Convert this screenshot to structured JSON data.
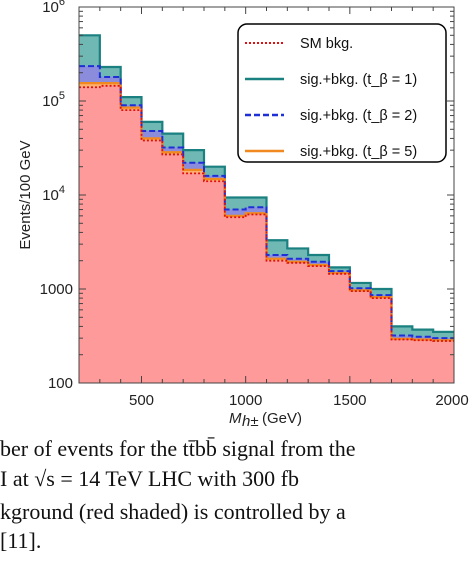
{
  "chart_data": {
    "type": "step-area",
    "xlabel": "M_h± (GeV)",
    "ylabel": "Events/100 GeV",
    "xlim": [
      200,
      2000
    ],
    "ylim": [
      100,
      1000000
    ],
    "y_scale": "log",
    "x_ticks": [
      "500",
      "1000",
      "1500",
      "2000"
    ],
    "y_ticks": [
      "100",
      "1000",
      "10^4",
      "10^5",
      "10^6"
    ],
    "bin_edges": [
      200,
      300,
      400,
      500,
      600,
      700,
      800,
      900,
      1000,
      1100,
      1200,
      1300,
      1400,
      1500,
      1600,
      1700,
      1800,
      1900,
      2000
    ],
    "series": [
      {
        "name": "SM bkg.",
        "values": [
          140000,
          145000,
          80000,
          38000,
          27000,
          17000,
          14000,
          5800,
          6200,
          2000,
          1900,
          1750,
          1450,
          950,
          800,
          290,
          285,
          280
        ],
        "color": "#e01010",
        "fill": "#ff9a9a",
        "style": "dotted"
      },
      {
        "name": "sig.+bkg. (t_β = 1)",
        "values": [
          500000,
          230000,
          110000,
          60000,
          45000,
          30000,
          20000,
          9400,
          9400,
          3300,
          2700,
          2300,
          1700,
          1160,
          1000,
          400,
          370,
          350
        ],
        "color": "#1a8080",
        "fill": "#6fb8b4",
        "style": "solid"
      },
      {
        "name": "sig.+bkg. (t_β = 2)",
        "values": [
          235000,
          180000,
          90000,
          48000,
          32000,
          22000,
          16000,
          7000,
          7400,
          2300,
          2100,
          1950,
          1550,
          1020,
          860,
          320,
          310,
          300
        ],
        "color": "#1f2fd8",
        "fill": "#8c8cdc",
        "style": "dashed"
      },
      {
        "name": "sig.+bkg. (t_β = 5)",
        "values": [
          155000,
          155000,
          85000,
          40000,
          28500,
          18500,
          14800,
          6000,
          6400,
          2100,
          1950,
          1800,
          1480,
          970,
          820,
          295,
          290,
          285
        ],
        "color": "#f08a20",
        "fill": "#ffb070",
        "style": "solid"
      }
    ],
    "legend": {
      "placement": "top-right",
      "entries": [
        {
          "text": "SM bkg.",
          "color": "#e01010",
          "style": "dotted"
        },
        {
          "text": "sig.+bkg. (t_β = 1)",
          "color": "#1a8080",
          "style": "solid"
        },
        {
          "text": "sig.+bkg. (t_β = 2)",
          "color": "#1f2fd8",
          "style": "dashed"
        },
        {
          "text": "sig.+bkg. (t_β = 5)",
          "color": "#f08a20",
          "style": "solid"
        }
      ]
    }
  },
  "caption": {
    "line1": "ber of events for the tt̄bb̄ signal from the",
    "line2": "I at √s = 14 TeV LHC with 300 fb",
    "line3": "kground (red shaded) is controlled by a",
    "line4": "[11]."
  }
}
